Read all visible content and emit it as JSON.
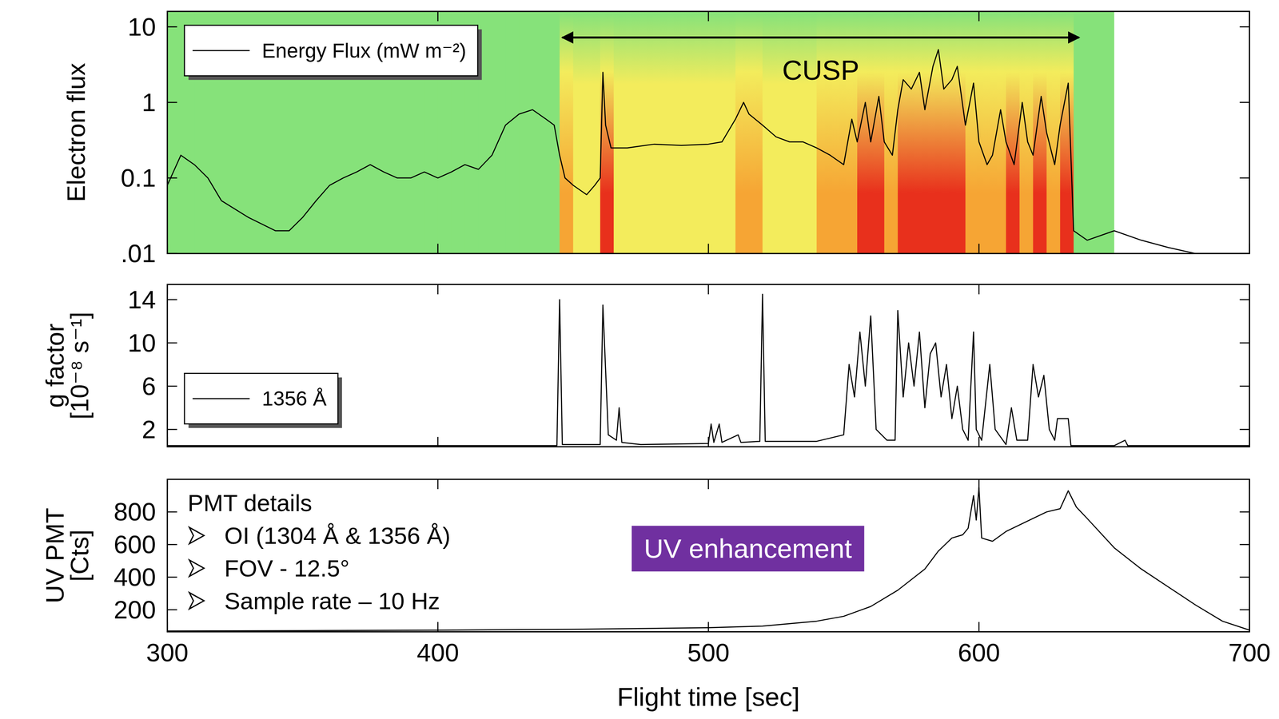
{
  "chart_data": [
    {
      "type": "line",
      "ylabel": "Electron flux",
      "log": "y",
      "xlim": [
        300,
        700
      ],
      "xticks": [
        300,
        400,
        500,
        600,
        700
      ],
      "ylim": [
        0.01,
        16
      ],
      "yticks": [
        {
          "value": 0.01,
          "label": ".01"
        },
        0.1,
        1,
        10
      ],
      "tick_labels": "y",
      "legend": "upper left",
      "x": [
        300,
        305,
        310,
        315,
        320,
        330,
        340,
        345,
        350,
        355,
        360,
        365,
        370,
        375,
        380,
        385,
        390,
        395,
        400,
        405,
        410,
        415,
        420,
        425,
        430,
        435,
        440,
        443,
        445,
        447,
        450,
        455,
        458,
        460,
        461,
        462,
        464,
        470,
        480,
        490,
        500,
        505,
        510,
        513,
        515,
        520,
        525,
        530,
        535,
        540,
        545,
        550,
        553,
        555,
        558,
        560,
        563,
        565,
        568,
        570,
        572,
        575,
        578,
        580,
        583,
        585,
        587,
        590,
        592,
        595,
        598,
        600,
        603,
        605,
        608,
        610,
        613,
        616,
        618,
        620,
        623,
        625,
        628,
        630,
        633,
        635,
        640,
        650,
        660,
        670,
        680,
        690,
        700
      ],
      "series": [
        {
          "name": "Energy Flux (mW m⁻²)",
          "color": "#000000",
          "values": [
            0.08,
            0.2,
            0.15,
            0.1,
            0.05,
            0.03,
            0.02,
            0.02,
            0.03,
            0.05,
            0.08,
            0.1,
            0.12,
            0.15,
            0.12,
            0.1,
            0.1,
            0.12,
            0.1,
            0.12,
            0.15,
            0.13,
            0.2,
            0.5,
            0.7,
            0.8,
            0.6,
            0.5,
            0.2,
            0.1,
            0.08,
            0.06,
            0.08,
            0.1,
            2.5,
            0.5,
            0.25,
            0.25,
            0.28,
            0.27,
            0.28,
            0.3,
            0.6,
            1,
            0.7,
            0.5,
            0.35,
            0.3,
            0.3,
            0.25,
            0.2,
            0.15,
            0.6,
            0.3,
            1,
            0.3,
            1.2,
            0.3,
            0.2,
            0.8,
            2,
            1.5,
            2.5,
            0.8,
            3,
            5,
            1.5,
            2,
            3,
            0.5,
            1.8,
            0.3,
            0.15,
            0.2,
            0.8,
            0.3,
            0.15,
            1,
            0.3,
            0.2,
            1.2,
            0.4,
            0.15,
            0.5,
            1.8,
            0.02,
            0.015,
            0.02,
            0.015,
            0.012,
            0.01,
            0.01,
            0.01
          ]
        }
      ],
      "spectrogram": {
        "edges": [
          300,
          305,
          310,
          315,
          320,
          325,
          330,
          335,
          340,
          345,
          350,
          355,
          360,
          365,
          370,
          375,
          380,
          385,
          390,
          395,
          400,
          405,
          410,
          415,
          420,
          425,
          430,
          435,
          440,
          445,
          450,
          455,
          460,
          465,
          470,
          475,
          480,
          485,
          490,
          495,
          500,
          505,
          510,
          515,
          520,
          525,
          530,
          535,
          540,
          545,
          550,
          555,
          560,
          565,
          570,
          575,
          580,
          585,
          590,
          595,
          600,
          605,
          610,
          615,
          620,
          625,
          630,
          635,
          640,
          645,
          650,
          655,
          660,
          665,
          670,
          675,
          680,
          685,
          690,
          695,
          700
        ],
        "levels": [
          1,
          1,
          1,
          1,
          1,
          1,
          1,
          1,
          1,
          1,
          1,
          1,
          1,
          1,
          1,
          1,
          1,
          1,
          1,
          1,
          1,
          1,
          1,
          1,
          1,
          1,
          1,
          1,
          1,
          3,
          2,
          2,
          4,
          2,
          2,
          2,
          2,
          2,
          2,
          2,
          2,
          2,
          3,
          3,
          2,
          2,
          2,
          2,
          3,
          3,
          3,
          4,
          4,
          3,
          4,
          4,
          4,
          4,
          4,
          3,
          3,
          3,
          4,
          3,
          4,
          3,
          4,
          1,
          1,
          1,
          0,
          0,
          0,
          0,
          0,
          0,
          0,
          0,
          0,
          0
        ],
        "colormap": [
          "#ffffff",
          "#86e27a",
          "#f3ec5c",
          "#f6a534",
          "#e8301c"
        ]
      },
      "annotations": [
        {
          "text": "CUSP",
          "x_range": [
            446,
            637
          ]
        }
      ]
    },
    {
      "type": "line",
      "ylabel": "g factor [10⁻⁸ s⁻¹]",
      "xlim": [
        300,
        700
      ],
      "xticks": [
        300,
        400,
        500,
        600,
        700
      ],
      "ylim": [
        0.4,
        15.4
      ],
      "yticks": [
        2,
        6,
        10,
        14
      ],
      "tick_labels": "y",
      "legend": "lower left",
      "x": [
        300,
        444,
        445,
        446,
        460,
        461,
        463,
        466,
        467,
        468,
        475,
        500,
        501,
        502,
        504,
        505,
        511,
        512,
        519,
        520,
        521,
        540,
        550,
        552,
        554,
        556,
        558,
        560,
        562,
        566,
        569,
        570,
        572,
        574,
        576,
        578,
        580,
        582,
        584,
        586,
        588,
        590,
        592,
        594,
        596,
        598,
        599,
        601,
        604,
        606,
        610,
        612,
        614,
        618,
        620,
        622,
        624,
        626,
        628,
        629,
        633,
        634,
        650,
        654,
        655,
        700
      ],
      "series": [
        {
          "name": "1356 Å",
          "color": "#000000",
          "values": [
            0.5,
            0.5,
            14,
            0.6,
            0.6,
            13.5,
            1.5,
            1,
            4,
            0.8,
            0.6,
            0.7,
            2.5,
            0.8,
            2.5,
            0.8,
            1.5,
            0.8,
            0.9,
            14.5,
            0.9,
            0.9,
            1.5,
            8,
            5,
            11,
            6,
            12.5,
            2,
            1,
            1,
            13,
            5,
            10,
            6,
            11,
            4,
            9,
            10,
            5,
            8,
            3,
            6,
            2,
            1,
            11,
            2,
            1,
            8,
            2,
            0.6,
            4,
            1,
            1,
            8,
            5,
            7,
            2,
            1,
            3,
            3,
            0.5,
            0.5,
            1,
            0.5,
            0.5
          ]
        }
      ]
    },
    {
      "type": "line",
      "ylabel": "UV PMT [Cts]",
      "xlabel": "Flight time [sec]",
      "xlim": [
        300,
        700
      ],
      "xticks": [
        300,
        400,
        500,
        600,
        700
      ],
      "ylim": [
        65,
        1000
      ],
      "yticks": [
        200,
        400,
        600,
        800
      ],
      "x": [
        300,
        350,
        400,
        450,
        500,
        520,
        540,
        550,
        560,
        570,
        580,
        585,
        590,
        594,
        596,
        598,
        599,
        600,
        601,
        605,
        610,
        620,
        625,
        630,
        633,
        636,
        640,
        650,
        660,
        670,
        680,
        690,
        700
      ],
      "series": [
        {
          "color": "#000000",
          "values": [
            70,
            72,
            75,
            80,
            90,
            100,
            130,
            160,
            220,
            320,
            450,
            560,
            640,
            660,
            700,
            900,
            750,
            950,
            640,
            620,
            680,
            760,
            800,
            820,
            930,
            830,
            760,
            580,
            450,
            340,
            230,
            130,
            75
          ]
        }
      ],
      "annotations": [
        {
          "text": "PMT details",
          "items": [
            "OI (1304 Å & 1356 Å)",
            "FOV - 12.5°",
            "Sample rate – 10 Hz"
          ]
        },
        {
          "text": "UV enhancement",
          "color": "#7030a0"
        }
      ]
    }
  ]
}
